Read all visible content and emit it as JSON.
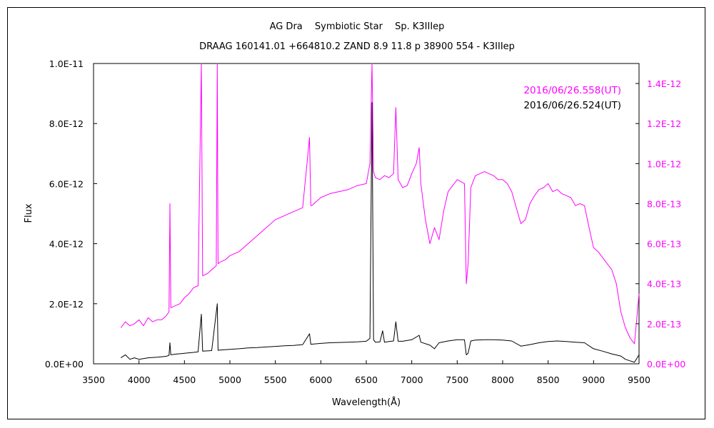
{
  "chart_data": {
    "type": "line",
    "title": "AG Dra　 Symbiotic Star　 Sp. K3IIIep",
    "subtitle": "DRAAG 160141.01 +664810.2 ZAND 8.9 11.8 p 38900 554 - K3IIIep",
    "xlabel": "Wavelength(Å)",
    "ylabel": "Flux",
    "xlim": [
      3500,
      9500
    ],
    "ylim_left": [
      0,
      1e-11
    ],
    "ylim_right": [
      0,
      1.5e-12
    ],
    "grid": false,
    "legend_position": "top-right",
    "x_ticks": [
      "3500",
      "4000",
      "4500",
      "5000",
      "5500",
      "6000",
      "6500",
      "7000",
      "7500",
      "8000",
      "8500",
      "9000",
      "9500"
    ],
    "y_ticks_left": [
      "0.0E+00",
      "2.0E-12",
      "4.0E-12",
      "6.0E-12",
      "8.0E-12",
      "1.0E-11"
    ],
    "y_ticks_right": [
      "0.0E+00",
      "2.0E-13",
      "4.0E-13",
      "6.0E-13",
      "8.0E-13",
      "1.0E-12",
      "1.2E-12",
      "1.4E-12"
    ],
    "series": [
      {
        "name": "2016/06/26.558(UT)",
        "color": "#ff00ff",
        "axis": "right",
        "x": [
          3800,
          3850,
          3900,
          3950,
          4000,
          4050,
          4100,
          4150,
          4200,
          4250,
          4300,
          4330,
          4340,
          4350,
          4400,
          4450,
          4500,
          4550,
          4600,
          4650,
          4686,
          4700,
          4750,
          4800,
          4850,
          4861,
          4870,
          4900,
          4950,
          5000,
          5050,
          5100,
          5150,
          5200,
          5250,
          5300,
          5400,
          5500,
          5600,
          5700,
          5800,
          5876,
          5890,
          5900,
          6000,
          6100,
          6200,
          6300,
          6400,
          6500,
          6540,
          6563,
          6580,
          6600,
          6650,
          6700,
          6750,
          6800,
          6825,
          6850,
          6900,
          6950,
          7000,
          7050,
          7082,
          7100,
          7150,
          7200,
          7250,
          7300,
          7350,
          7400,
          7500,
          7580,
          7600,
          7620,
          7650,
          7700,
          7750,
          7800,
          7850,
          7900,
          7950,
          8000,
          8050,
          8100,
          8150,
          8200,
          8250,
          8300,
          8350,
          8400,
          8450,
          8500,
          8550,
          8600,
          8650,
          8700,
          8750,
          8800,
          8850,
          8900,
          8950,
          9000,
          9050,
          9100,
          9150,
          9200,
          9250,
          9300,
          9350,
          9400,
          9450,
          9500
        ],
        "y": [
          1.8e-13,
          2.1e-13,
          1.9e-13,
          2e-13,
          2.2e-13,
          1.9e-13,
          2.3e-13,
          2.1e-13,
          2.2e-13,
          2.2e-13,
          2.4e-13,
          2.6e-13,
          8e-13,
          2.8e-13,
          2.9e-13,
          3e-13,
          3.3e-13,
          3.5e-13,
          3.8e-13,
          3.9e-13,
          1.5e-12,
          4.4e-13,
          4.5e-13,
          4.7e-13,
          4.9e-13,
          1.5e-12,
          5e-13,
          5.1e-13,
          5.2e-13,
          5.4e-13,
          5.5e-13,
          5.6e-13,
          5.8e-13,
          6e-13,
          6.2e-13,
          6.4e-13,
          6.8e-13,
          7.2e-13,
          7.4e-13,
          7.6e-13,
          7.8e-13,
          1.13e-12,
          7.9e-13,
          7.9e-13,
          8.3e-13,
          8.5e-13,
          8.6e-13,
          8.7e-13,
          8.9e-13,
          9e-13,
          1e-12,
          1.5e-12,
          9.6e-13,
          9.3e-13,
          9.2e-13,
          9.4e-13,
          9.3e-13,
          9.5e-13,
          1.28e-12,
          9.2e-13,
          8.8e-13,
          8.9e-13,
          9.5e-13,
          1e-12,
          1.08e-12,
          9e-13,
          7.2e-13,
          6e-13,
          6.8e-13,
          6.2e-13,
          7.6e-13,
          8.6e-13,
          9.2e-13,
          9e-13,
          4e-13,
          5e-13,
          8.8e-13,
          9.4e-13,
          9.5e-13,
          9.6e-13,
          9.5e-13,
          9.4e-13,
          9.2e-13,
          9.2e-13,
          9e-13,
          8.6e-13,
          7.8e-13,
          7e-13,
          7.2e-13,
          8e-13,
          8.4e-13,
          8.7e-13,
          8.8e-13,
          9e-13,
          8.6e-13,
          8.7e-13,
          8.5e-13,
          8.4e-13,
          8.3e-13,
          7.9e-13,
          8e-13,
          7.9e-13,
          6.8e-13,
          5.8e-13,
          5.6e-13,
          5.3e-13,
          5e-13,
          4.7e-13,
          4e-13,
          2.6e-13,
          1.8e-13,
          1.3e-13,
          1e-13,
          3.5e-13
        ]
      },
      {
        "name": "2016/06/26.524(UT)",
        "color": "#000000",
        "axis": "left",
        "x": [
          3800,
          3850,
          3900,
          3950,
          4000,
          4100,
          4200,
          4300,
          4330,
          4340,
          4350,
          4400,
          4500,
          4600,
          4650,
          4686,
          4700,
          4750,
          4800,
          4861,
          4870,
          4900,
          5000,
          5100,
          5200,
          5300,
          5400,
          5500,
          5600,
          5700,
          5800,
          5876,
          5890,
          6000,
          6100,
          6200,
          6300,
          6400,
          6500,
          6540,
          6563,
          6580,
          6600,
          6650,
          6680,
          6700,
          6750,
          6800,
          6825,
          6850,
          6900,
          7000,
          7082,
          7100,
          7200,
          7250,
          7300,
          7400,
          7500,
          7580,
          7600,
          7620,
          7650,
          7700,
          7800,
          7900,
          8000,
          8100,
          8200,
          8300,
          8400,
          8500,
          8600,
          8700,
          8800,
          8900,
          9000,
          9100,
          9200,
          9300,
          9350,
          9400,
          9450,
          9500
        ],
        "y": [
          2e-13,
          3e-13,
          1.5e-13,
          2e-13,
          1.5e-13,
          2e-13,
          2.2e-13,
          2.5e-13,
          2.8e-13,
          7e-13,
          3e-13,
          3.2e-13,
          3.5e-13,
          3.8e-13,
          4e-13,
          1.65e-12,
          4.2e-13,
          4.3e-13,
          4.4e-13,
          2e-12,
          4.5e-13,
          4.6e-13,
          4.8e-13,
          5e-13,
          5.3e-13,
          5.4e-13,
          5.6e-13,
          5.8e-13,
          6e-13,
          6.1e-13,
          6.4e-13,
          1e-12,
          6.5e-13,
          6.8e-13,
          7e-13,
          7.1e-13,
          7.2e-13,
          7.3e-13,
          7.5e-13,
          8.5e-13,
          8.7e-12,
          8e-13,
          7.2e-13,
          7.3e-13,
          1.1e-12,
          7.2e-13,
          7.4e-13,
          7.6e-13,
          1.4e-12,
          7.5e-13,
          7.5e-13,
          8e-13,
          9.5e-13,
          7.2e-13,
          6.2e-13,
          5e-13,
          7e-13,
          7.6e-13,
          8e-13,
          8e-13,
          3e-13,
          3.5e-13,
          7.6e-13,
          7.9e-13,
          8e-13,
          8e-13,
          7.9e-13,
          7.6e-13,
          5.9e-13,
          6.4e-13,
          7e-13,
          7.4e-13,
          7.6e-13,
          7.4e-13,
          7.2e-13,
          7e-13,
          5e-13,
          4.2e-13,
          3.3e-13,
          2.6e-13,
          1.5e-13,
          1e-13,
          5e-14,
          3e-13
        ]
      }
    ]
  }
}
